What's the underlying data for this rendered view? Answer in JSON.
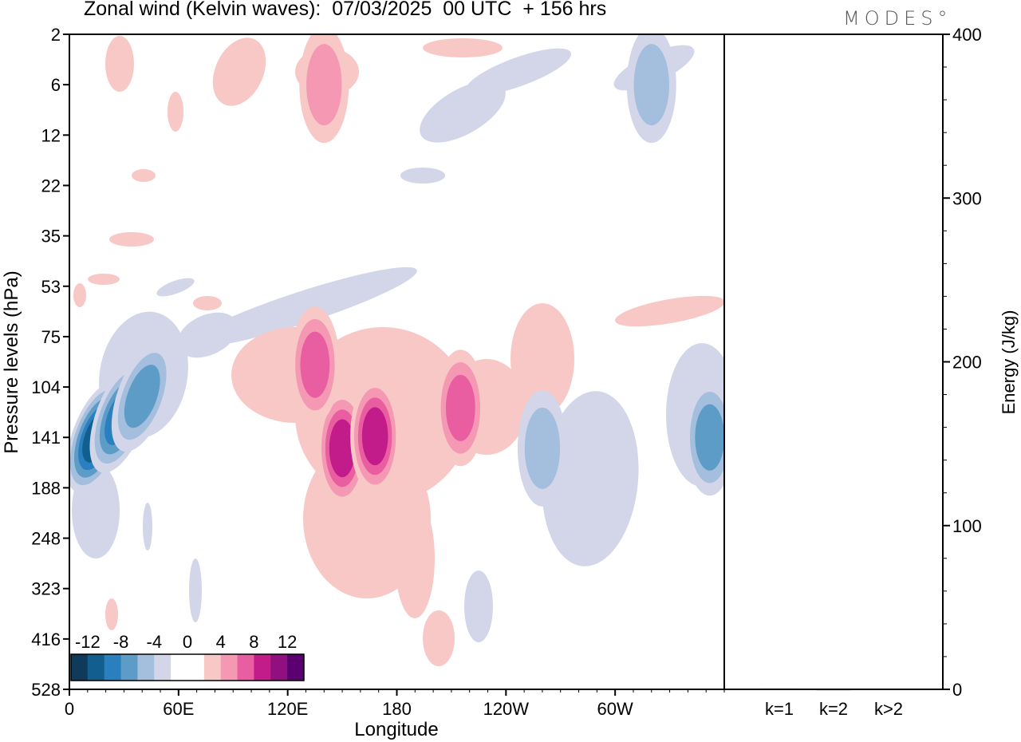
{
  "title": "Zonal wind (Kelvin waves):  07/03/2025  00 UTC  + 156 hrs",
  "brand": "MODES°",
  "colors": {
    "neg": [
      "#0f3a5a",
      "#125e8e",
      "#2a7fbf",
      "#5e9cc8",
      "#a4bede",
      "#d2d6e8"
    ],
    "pos": [
      "#f7c8c5",
      "#f598b3",
      "#e95ea0",
      "#c21b8a",
      "#901080",
      "#5a0070"
    ],
    "zero": "#ffffff"
  },
  "chart_data": [
    {
      "type": "heatmap",
      "title": "Zonal wind (Kelvin waves):  07/03/2025  00 UTC  + 156 hrs",
      "xlabel": "Longitude",
      "ylabel": "Pressure levels (hPa)",
      "x_ticks": [
        "0",
        "60E",
        "120E",
        "180",
        "120W",
        "60W"
      ],
      "y_ticks": [
        "2",
        "6",
        "12",
        "22",
        "35",
        "53",
        "75",
        "104",
        "141",
        "188",
        "248",
        "323",
        "416",
        "528"
      ],
      "colorbar_labels": [
        "-12",
        "-8",
        "-4",
        "0",
        "4",
        "8",
        "12"
      ],
      "contour_levels": [
        -12,
        -10,
        -8,
        -6,
        -4,
        -2,
        2,
        4,
        6,
        8,
        10,
        12
      ],
      "features": [
        {
          "lon": 15,
          "level": 141,
          "value": -11
        },
        {
          "lon": 28,
          "level": 125,
          "value": -8
        },
        {
          "lon": 40,
          "level": 110,
          "value": -7
        },
        {
          "lon": 150,
          "level": 150,
          "value": 9
        },
        {
          "lon": 168,
          "level": 140,
          "value": 8
        },
        {
          "lon": 215,
          "level": 118,
          "value": 7
        },
        {
          "lon": 260,
          "level": 150,
          "value": -5
        },
        {
          "lon": 352,
          "level": 141,
          "value": -6
        },
        {
          "lon": 135,
          "level": 90,
          "value": 6
        },
        {
          "lon": 140,
          "level": 6,
          "value": 5
        },
        {
          "lon": 320,
          "level": 6,
          "value": -5
        }
      ]
    },
    {
      "type": "bar",
      "ylabel": "Energy (J/kg)",
      "categories": [
        "k=1",
        "k=2",
        "k>2"
      ],
      "values": [
        0.5,
        0.2,
        0.4
      ],
      "ylim": [
        0,
        400
      ],
      "y_ticks": [
        "0",
        "100",
        "200",
        "300",
        "400"
      ]
    }
  ]
}
